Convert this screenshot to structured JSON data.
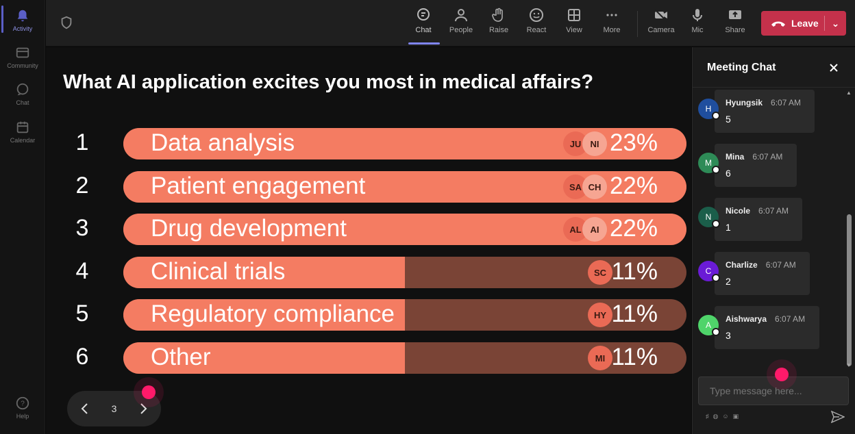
{
  "rail": {
    "items": [
      {
        "label": "Activity",
        "icon": "bell-icon"
      },
      {
        "label": "Community",
        "icon": "community-icon"
      },
      {
        "label": "Chat",
        "icon": "chat-icon"
      },
      {
        "label": "Calendar",
        "icon": "calendar-icon"
      }
    ],
    "help": "Help"
  },
  "toolbar": {
    "chat": "Chat",
    "people": "People",
    "raise": "Raise",
    "react": "React",
    "view": "View",
    "more": "More",
    "camera": "Camera",
    "mic": "Mic",
    "share": "Share",
    "leave": "Leave"
  },
  "poll": {
    "question": "What AI application excites you most in medical affairs?",
    "options": [
      {
        "rank": "1",
        "label": "Data analysis",
        "percent": "23%",
        "value": 23,
        "voters": [
          "JU",
          "NI"
        ]
      },
      {
        "rank": "2",
        "label": "Patient engagement",
        "percent": "22%",
        "value": 22,
        "voters": [
          "SA",
          "CH"
        ]
      },
      {
        "rank": "3",
        "label": "Drug development",
        "percent": "22%",
        "value": 22,
        "voters": [
          "AL",
          "AI"
        ]
      },
      {
        "rank": "4",
        "label": "Clinical trials",
        "percent": "11%",
        "value": 11,
        "voters": [
          "SC"
        ]
      },
      {
        "rank": "5",
        "label": "Regulatory compliance",
        "percent": "11%",
        "value": 11,
        "voters": [
          "HY"
        ]
      },
      {
        "rank": "6",
        "label": "Other",
        "percent": "11%",
        "value": 11,
        "voters": [
          "MI"
        ]
      }
    ],
    "page": "3"
  },
  "chat": {
    "title": "Meeting Chat",
    "messages": [
      {
        "initial": "H",
        "name": "Hyungsik",
        "time": "6:07 AM",
        "text": "5",
        "color": "#1f4e9e"
      },
      {
        "initial": "M",
        "name": "Mina",
        "time": "6:07 AM",
        "text": "6",
        "color": "#2e8b57"
      },
      {
        "initial": "N",
        "name": "Nicole",
        "time": "6:07 AM",
        "text": "1",
        "color": "#1b5e4a"
      },
      {
        "initial": "C",
        "name": "Charlize",
        "time": "6:07 AM",
        "text": "2",
        "color": "#6a1bd6"
      },
      {
        "initial": "A",
        "name": "Aishwarya",
        "time": "6:07 AM",
        "text": "3",
        "color": "#4fd46a"
      }
    ],
    "compose_placeholder": "Type message here..."
  },
  "colors": {
    "bar_fill": "#f47c62",
    "bar_track": "#7a4436",
    "leave": "#c4314b",
    "accent": "#7f85f5"
  }
}
